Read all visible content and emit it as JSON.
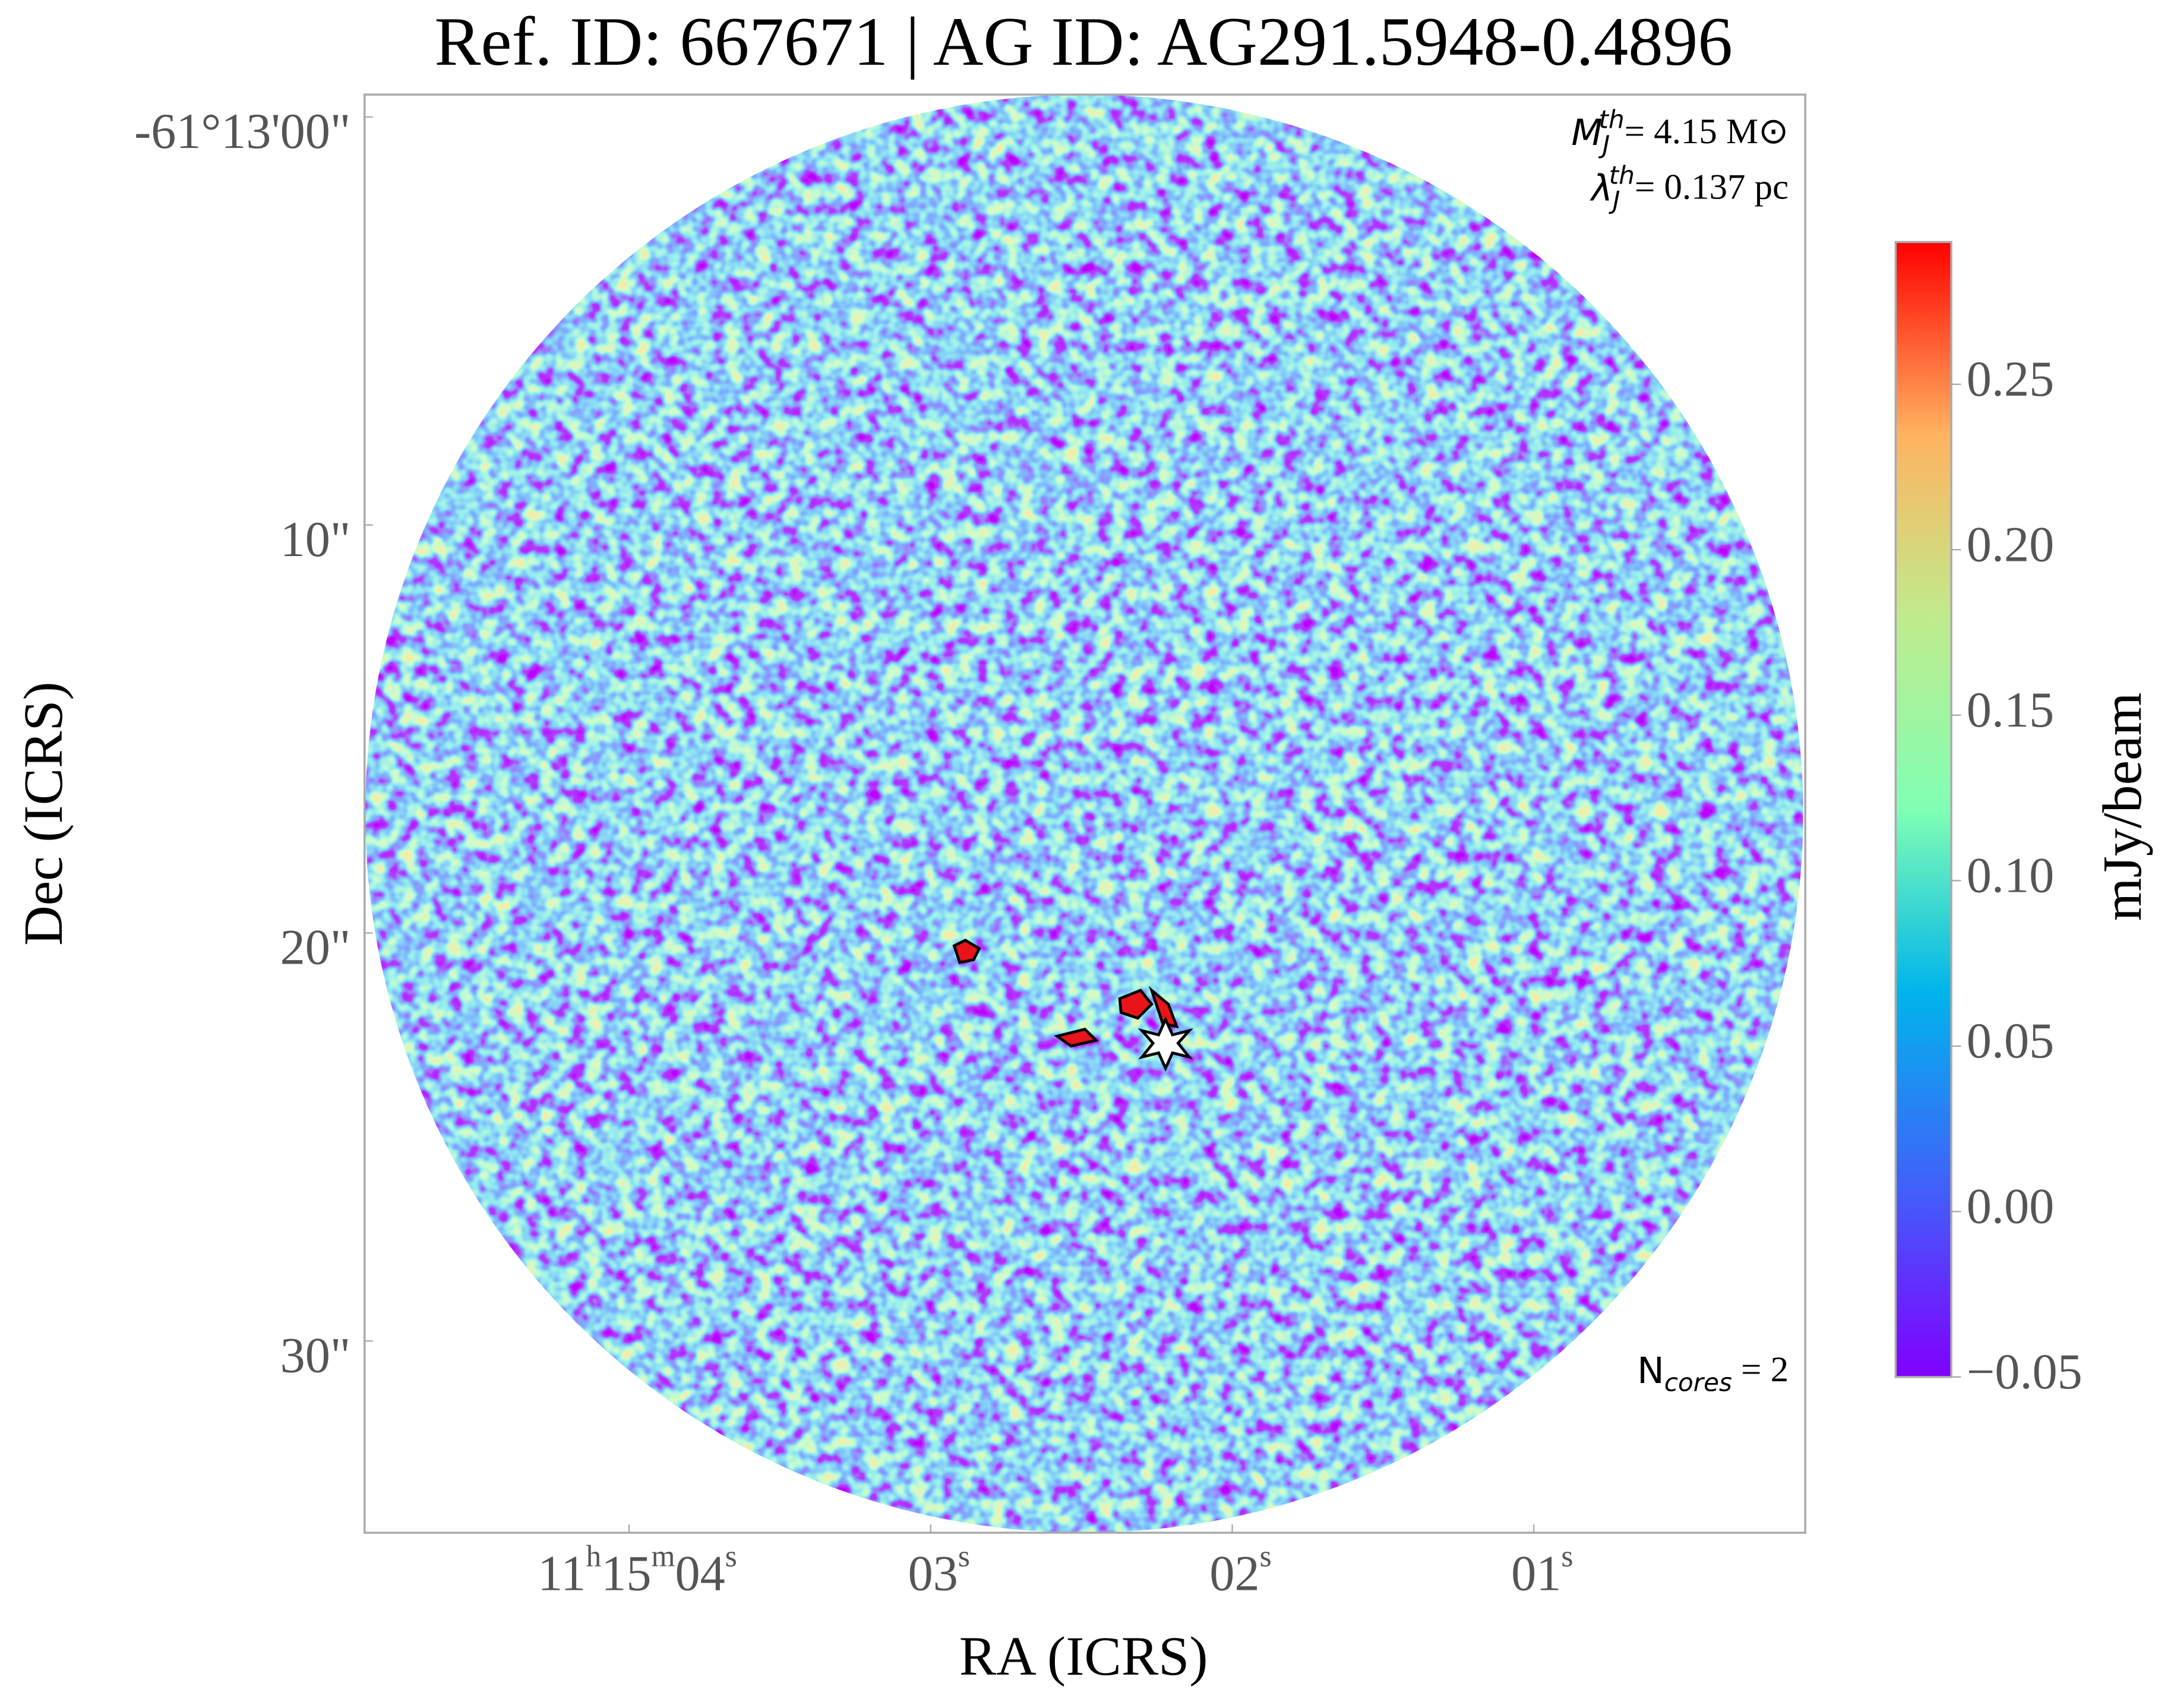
{
  "chart_data": {
    "type": "image",
    "title": "Ref. ID: 667671 | AG ID: AG291.5948-0.4896",
    "x_label": "RA (ICRS)",
    "y_label": "Dec (ICRS)",
    "colorbar_label": "mJy/beam",
    "colormap": "rainbow",
    "xlim": [
      4.877,
      0.1
    ],
    "xticks": [
      {
        "value": 4,
        "label": [
          "11",
          "h",
          "15",
          "m",
          "04",
          "s"
        ]
      },
      {
        "value": 3,
        "label": [
          "03",
          "s"
        ]
      },
      {
        "value": 2,
        "label": [
          "02",
          "s"
        ]
      },
      {
        "value": 1,
        "label": [
          "01",
          "s"
        ]
      }
    ],
    "ylim": [
      34.7,
      -0.55
    ],
    "yticks": [
      {
        "value": 0,
        "label": "-61°13'00\""
      },
      {
        "value": 10,
        "label": "10\""
      },
      {
        "value": 20,
        "label": "20\""
      },
      {
        "value": 30,
        "label": "30\""
      }
    ],
    "clim": [
      -0.05,
      0.293
    ],
    "cticks": [
      {
        "value": -0.05,
        "label": "−0.05"
      },
      {
        "value": 0,
        "label": "0.00"
      },
      {
        "value": 0.05,
        "label": "0.05"
      },
      {
        "value": 0.1,
        "label": "0.10"
      },
      {
        "value": 0.15,
        "label": "0.15"
      },
      {
        "value": 0.2,
        "label": "0.20"
      },
      0.25
    ],
    "annotations": {
      "jeans_mass": [
        "M",
        "J",
        "th",
        "= 4.15 M⊙"
      ],
      "jeans_length": [
        "λ",
        "J",
        "th",
        "= 0.137 pc"
      ],
      "n_cores": [
        "N",
        "cores",
        " = 2"
      ]
    }
  }
}
